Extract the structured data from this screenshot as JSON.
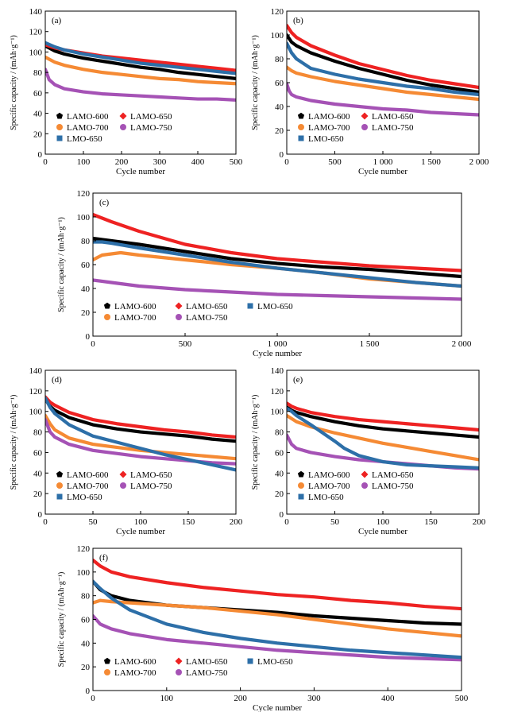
{
  "figure": {
    "ylabel": "Specific capacity / (mAh·g⁻¹)",
    "xlabel": "Cycle number"
  },
  "series_colors": {
    "LAMO-600": "#000000",
    "LAMO-650": "#ee2222",
    "LAMO-700": "#f58a34",
    "LAMO-750": "#a552b5",
    "LMO-650": "#2d6fa8"
  },
  "chart_data": [
    {
      "id": "a",
      "panel_label": "(a)",
      "type": "line",
      "xlabel": "Cycle number",
      "ylabel": "Specific capacity / (mAh·g⁻¹)",
      "xlim": [
        0,
        500
      ],
      "ylim": [
        0,
        140
      ],
      "xticks": [
        0,
        100,
        200,
        300,
        400,
        500
      ],
      "xtick_labels": [
        "0",
        "100",
        "200",
        "300",
        "400",
        "500"
      ],
      "yticks": [
        0,
        20,
        40,
        60,
        80,
        100,
        120,
        140
      ],
      "legend_rows": [
        [
          "LAMO-600",
          "LAMO-650"
        ],
        [
          "LAMO-700",
          "LAMO-750"
        ],
        [
          "LMO-650"
        ]
      ],
      "series": [
        {
          "name": "LAMO-600",
          "x": [
            0,
            25,
            50,
            100,
            150,
            200,
            250,
            300,
            350,
            400,
            450,
            500
          ],
          "y": [
            106,
            101,
            98,
            94,
            91,
            88,
            85,
            83,
            80,
            78,
            76,
            74
          ]
        },
        {
          "name": "LAMO-650",
          "x": [
            0,
            25,
            50,
            100,
            150,
            200,
            250,
            300,
            350,
            400,
            450,
            500
          ],
          "y": [
            107,
            104,
            102,
            99,
            96,
            94,
            92,
            90,
            88,
            86,
            84,
            82
          ]
        },
        {
          "name": "LAMO-700",
          "x": [
            0,
            25,
            50,
            100,
            150,
            200,
            250,
            300,
            350,
            400,
            450,
            500
          ],
          "y": [
            95,
            90,
            87,
            83,
            80,
            78,
            76,
            74,
            73,
            71,
            70,
            69
          ]
        },
        {
          "name": "LAMO-750",
          "x": [
            0,
            10,
            25,
            50,
            100,
            150,
            200,
            250,
            300,
            350,
            400,
            450,
            500
          ],
          "y": [
            83,
            73,
            68,
            64,
            61,
            59,
            58,
            57,
            56,
            55,
            54,
            54,
            53
          ]
        },
        {
          "name": "LMO-650",
          "x": [
            0,
            25,
            50,
            100,
            150,
            200,
            250,
            300,
            350,
            400,
            450,
            500
          ],
          "y": [
            109,
            105,
            102,
            98,
            95,
            92,
            89,
            87,
            85,
            83,
            81,
            79
          ]
        }
      ]
    },
    {
      "id": "b",
      "panel_label": "(b)",
      "type": "line",
      "xlabel": "Cycle number",
      "ylabel": "Specific capacity / (mAh·g⁻¹)",
      "xlim": [
        0,
        2000
      ],
      "ylim": [
        0,
        120
      ],
      "xticks": [
        0,
        500,
        1000,
        1500,
        2000
      ],
      "xtick_labels": [
        "0",
        "500",
        "1 000",
        "1 500",
        "2 000"
      ],
      "yticks": [
        0,
        20,
        40,
        60,
        80,
        100,
        120
      ],
      "legend_rows": [
        [
          "LAMO-600",
          "LAMO-650"
        ],
        [
          "LAMO-700",
          "LAMO-750"
        ],
        [
          "LMO-650"
        ]
      ],
      "series": [
        {
          "name": "LAMO-600",
          "x": [
            0,
            50,
            100,
            250,
            500,
            750,
            1000,
            1250,
            1500,
            1750,
            2000
          ],
          "y": [
            100,
            94,
            91,
            85,
            78,
            72,
            67,
            62,
            58,
            55,
            52
          ]
        },
        {
          "name": "LAMO-650",
          "x": [
            0,
            50,
            100,
            250,
            500,
            750,
            1000,
            1250,
            1500,
            1750,
            2000
          ],
          "y": [
            108,
            102,
            98,
            91,
            83,
            76,
            71,
            66,
            62,
            59,
            56
          ]
        },
        {
          "name": "LAMO-700",
          "x": [
            0,
            50,
            100,
            250,
            500,
            750,
            1000,
            1250,
            1500,
            1750,
            2000
          ],
          "y": [
            73,
            70,
            68,
            65,
            61,
            58,
            55,
            52,
            50,
            48,
            46
          ]
        },
        {
          "name": "LAMO-750",
          "x": [
            0,
            25,
            50,
            100,
            250,
            500,
            750,
            1000,
            1250,
            1500,
            1750,
            2000
          ],
          "y": [
            59,
            53,
            50,
            48,
            45,
            42,
            40,
            38,
            37,
            35,
            34,
            33
          ]
        },
        {
          "name": "LMO-650",
          "x": [
            0,
            50,
            100,
            250,
            500,
            750,
            1000,
            1250,
            1500,
            1750,
            2000
          ],
          "y": [
            93,
            85,
            80,
            72,
            67,
            63,
            60,
            57,
            55,
            52,
            50
          ]
        }
      ]
    },
    {
      "id": "c",
      "panel_label": "(c)",
      "type": "line",
      "xlabel": "Cycle number",
      "ylabel": "Specific capacity / (mAh·g⁻¹)",
      "xlim": [
        0,
        2000
      ],
      "ylim": [
        0,
        120
      ],
      "xticks": [
        0,
        500,
        1000,
        1500,
        2000
      ],
      "xtick_labels": [
        "0",
        "500",
        "1 000",
        "1 500",
        "2 000"
      ],
      "yticks": [
        0,
        20,
        40,
        60,
        80,
        100,
        120
      ],
      "legend_rows": [
        [
          "LAMO-600",
          "LAMO-650",
          "LMO-650"
        ],
        [
          "LAMO-700",
          "LAMO-750"
        ]
      ],
      "series": [
        {
          "name": "LAMO-600",
          "x": [
            0,
            50,
            100,
            250,
            500,
            750,
            1000,
            1250,
            1500,
            1750,
            2000
          ],
          "y": [
            82,
            81,
            80,
            77,
            71,
            65,
            61,
            58,
            56,
            53,
            50
          ]
        },
        {
          "name": "LAMO-650",
          "x": [
            0,
            50,
            100,
            250,
            500,
            750,
            1000,
            1250,
            1500,
            1750,
            2000
          ],
          "y": [
            102,
            99,
            96,
            88,
            77,
            70,
            65,
            62,
            59,
            57,
            55
          ]
        },
        {
          "name": "LAMO-700",
          "x": [
            0,
            50,
            100,
            150,
            250,
            500,
            750,
            1000,
            1250,
            1500,
            1750,
            2000
          ],
          "y": [
            64,
            68,
            69,
            70,
            68,
            64,
            60,
            57,
            53,
            48,
            45,
            42
          ]
        },
        {
          "name": "LAMO-750",
          "x": [
            0,
            100,
            250,
            500,
            750,
            1000,
            1250,
            1500,
            1750,
            2000
          ],
          "y": [
            47,
            45,
            42,
            39,
            37,
            35,
            34,
            33,
            32,
            31
          ]
        },
        {
          "name": "LMO-650",
          "x": [
            0,
            50,
            100,
            250,
            500,
            750,
            1000,
            1250,
            1500,
            1750,
            2000
          ],
          "y": [
            79,
            79,
            78,
            74,
            68,
            62,
            57,
            53,
            49,
            45,
            42
          ]
        }
      ]
    },
    {
      "id": "d",
      "panel_label": "(d)",
      "type": "line",
      "xlabel": "Cycle number",
      "ylabel": "Specific capacity / (mAh·g⁻¹)",
      "xlim": [
        0,
        200
      ],
      "ylim": [
        0,
        140
      ],
      "xticks": [
        0,
        50,
        100,
        150,
        200
      ],
      "xtick_labels": [
        "0",
        "50",
        "100",
        "150",
        "200"
      ],
      "yticks": [
        0,
        20,
        40,
        60,
        80,
        100,
        120,
        140
      ],
      "legend_rows": [
        [
          "LAMO-600",
          "LAMO-650"
        ],
        [
          "LAMO-700",
          "LAMO-750"
        ],
        [
          "LMO-650"
        ]
      ],
      "series": [
        {
          "name": "LAMO-600",
          "x": [
            0,
            5,
            10,
            25,
            50,
            75,
            100,
            125,
            150,
            175,
            200
          ],
          "y": [
            112,
            105,
            101,
            94,
            87,
            83,
            80,
            78,
            76,
            73,
            71
          ]
        },
        {
          "name": "LAMO-650",
          "x": [
            0,
            5,
            10,
            25,
            50,
            75,
            100,
            125,
            150,
            175,
            200
          ],
          "y": [
            114,
            109,
            106,
            99,
            92,
            88,
            85,
            82,
            80,
            77,
            75
          ]
        },
        {
          "name": "LAMO-700",
          "x": [
            0,
            5,
            10,
            25,
            50,
            75,
            100,
            125,
            150,
            175,
            200
          ],
          "y": [
            96,
            88,
            82,
            74,
            68,
            65,
            62,
            60,
            58,
            56,
            54
          ]
        },
        {
          "name": "LAMO-750",
          "x": [
            0,
            5,
            10,
            25,
            50,
            75,
            100,
            125,
            150,
            175,
            200
          ],
          "y": [
            92,
            80,
            75,
            68,
            62,
            59,
            56,
            54,
            52,
            50,
            49
          ]
        },
        {
          "name": "LMO-650",
          "x": [
            0,
            5,
            10,
            25,
            50,
            75,
            100,
            125,
            150,
            175,
            200
          ],
          "y": [
            113,
            104,
            98,
            87,
            76,
            70,
            64,
            58,
            53,
            48,
            43
          ]
        }
      ]
    },
    {
      "id": "e",
      "panel_label": "(e)",
      "type": "line",
      "xlabel": "Cycle number",
      "ylabel": "Specific capacity / (mAh·g⁻¹)",
      "xlim": [
        0,
        200
      ],
      "ylim": [
        0,
        140
      ],
      "xticks": [
        0,
        50,
        100,
        150,
        200
      ],
      "xtick_labels": [
        "0",
        "50",
        "100",
        "150",
        "200"
      ],
      "yticks": [
        0,
        20,
        40,
        60,
        80,
        100,
        120,
        140
      ],
      "legend_rows": [
        [
          "LAMO-600",
          "LAMO-650"
        ],
        [
          "LAMO-700",
          "LAMO-750"
        ],
        [
          "LMO-650"
        ]
      ],
      "series": [
        {
          "name": "LAMO-600",
          "x": [
            0,
            5,
            10,
            25,
            50,
            75,
            100,
            125,
            150,
            175,
            200
          ],
          "y": [
            104,
            101,
            99,
            95,
            90,
            86,
            83,
            81,
            79,
            77,
            75
          ]
        },
        {
          "name": "LAMO-650",
          "x": [
            0,
            5,
            10,
            25,
            50,
            75,
            100,
            125,
            150,
            175,
            200
          ],
          "y": [
            108,
            105,
            103,
            99,
            95,
            92,
            90,
            88,
            86,
            84,
            82
          ]
        },
        {
          "name": "LAMO-700",
          "x": [
            0,
            5,
            10,
            25,
            50,
            75,
            100,
            125,
            150,
            175,
            200
          ],
          "y": [
            96,
            93,
            90,
            85,
            79,
            74,
            69,
            65,
            61,
            57,
            53
          ]
        },
        {
          "name": "LAMO-750",
          "x": [
            0,
            5,
            10,
            25,
            50,
            75,
            100,
            125,
            150,
            175,
            200
          ],
          "y": [
            77,
            68,
            64,
            60,
            56,
            53,
            51,
            49,
            47,
            45,
            44
          ]
        },
        {
          "name": "LMO-650",
          "x": [
            0,
            5,
            10,
            25,
            50,
            60,
            75,
            100,
            125,
            150,
            175,
            200
          ],
          "y": [
            103,
            100,
            96,
            87,
            71,
            64,
            57,
            51,
            48,
            47,
            46,
            45
          ]
        }
      ]
    },
    {
      "id": "f",
      "panel_label": "(f)",
      "type": "line",
      "xlabel": "Cycle number",
      "ylabel": "Specific capacity / (mAh·g⁻¹)",
      "xlim": [
        0,
        500
      ],
      "ylim": [
        0,
        120
      ],
      "xticks": [
        0,
        100,
        200,
        300,
        400,
        500
      ],
      "xtick_labels": [
        "0",
        "100",
        "200",
        "300",
        "400",
        "500"
      ],
      "yticks": [
        0,
        20,
        40,
        60,
        80,
        100,
        120
      ],
      "legend_rows": [
        [
          "LAMO-600",
          "LAMO-650",
          "LMO-650"
        ],
        [
          "LAMO-700",
          "LAMO-750"
        ]
      ],
      "series": [
        {
          "name": "LAMO-600",
          "x": [
            0,
            10,
            25,
            50,
            100,
            150,
            200,
            250,
            300,
            350,
            400,
            450,
            500
          ],
          "y": [
            92,
            85,
            80,
            76,
            72,
            70,
            68,
            66,
            63,
            61,
            59,
            57,
            56
          ]
        },
        {
          "name": "LAMO-650",
          "x": [
            0,
            10,
            25,
            50,
            100,
            150,
            200,
            250,
            300,
            350,
            400,
            450,
            500
          ],
          "y": [
            110,
            105,
            100,
            96,
            91,
            87,
            84,
            81,
            79,
            76,
            74,
            71,
            69
          ]
        },
        {
          "name": "LAMO-700",
          "x": [
            0,
            10,
            25,
            50,
            100,
            150,
            200,
            250,
            300,
            350,
            400,
            450,
            500
          ],
          "y": [
            74,
            76,
            75,
            74,
            72,
            70,
            67,
            64,
            60,
            56,
            52,
            49,
            46
          ]
        },
        {
          "name": "LAMO-750",
          "x": [
            0,
            10,
            25,
            50,
            100,
            150,
            200,
            250,
            300,
            350,
            400,
            450,
            500
          ],
          "y": [
            63,
            56,
            52,
            48,
            43,
            40,
            37,
            34,
            32,
            30,
            28,
            27,
            26
          ]
        },
        {
          "name": "LMO-650",
          "x": [
            0,
            10,
            25,
            50,
            100,
            150,
            200,
            250,
            300,
            350,
            400,
            450,
            500
          ],
          "y": [
            92,
            86,
            78,
            68,
            56,
            49,
            44,
            40,
            37,
            34,
            32,
            30,
            28
          ]
        }
      ]
    }
  ]
}
